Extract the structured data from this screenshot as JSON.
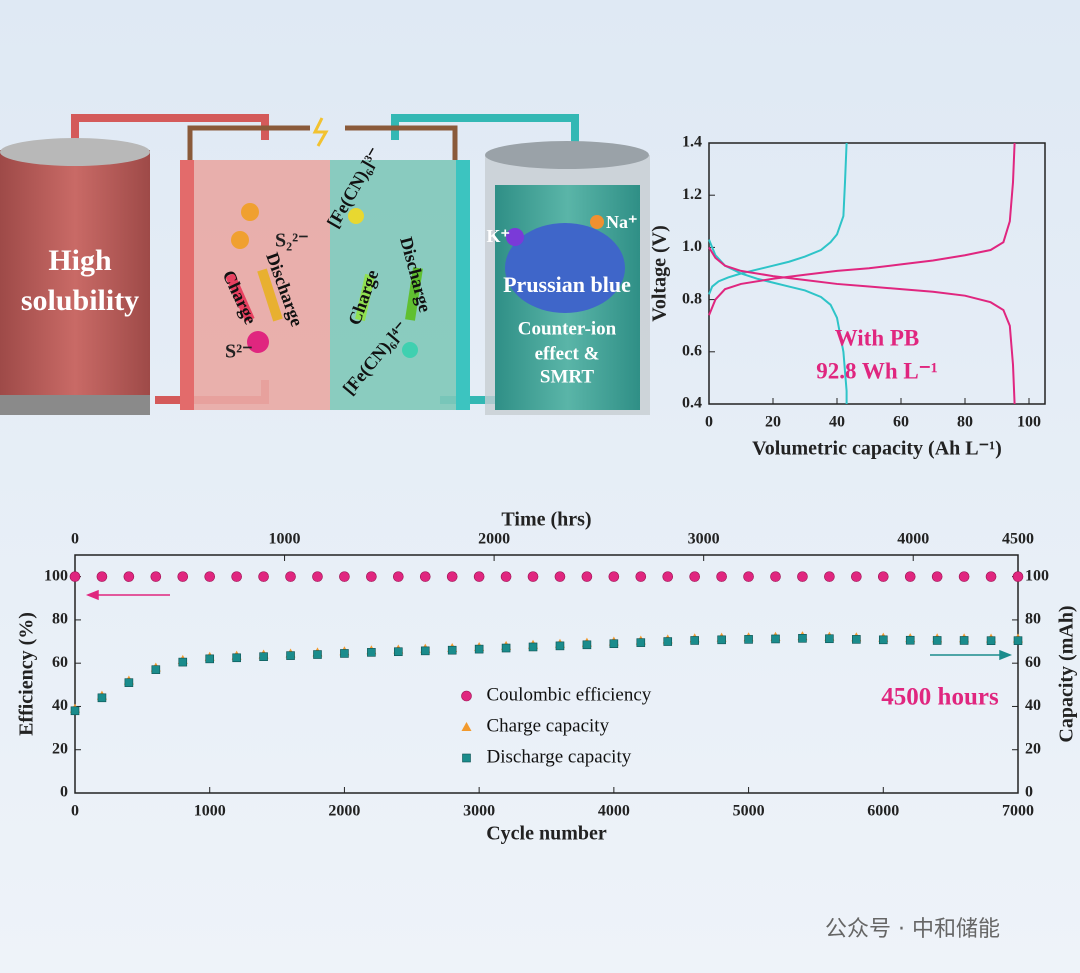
{
  "chart_data": [
    {
      "type": "line",
      "x_label": "Volumetric capacity (Ah L⁻¹)",
      "y_label": "Voltage (V)",
      "annotations": [
        "With PB",
        "92.8 Wh L⁻¹"
      ],
      "xlim": [
        0,
        105
      ],
      "xticks": [
        0,
        20,
        40,
        60,
        80,
        100
      ],
      "ylim": [
        0.4,
        1.4
      ],
      "yticks": [
        0.4,
        0.6,
        0.8,
        {
          "value": 1,
          "label": "1.0"
        },
        1.2,
        1.4
      ],
      "series": [
        {
          "color": "#2ec4c8",
          "x": [
            0,
            1,
            3,
            6,
            10,
            15,
            20,
            25,
            30,
            35,
            38,
            40,
            42,
            42.5,
            43
          ],
          "values": [
            0.82,
            0.85,
            0.87,
            0.885,
            0.9,
            0.915,
            0.93,
            0.945,
            0.965,
            0.99,
            1.02,
            1.05,
            1.12,
            1.25,
            1.4
          ]
        },
        {
          "color": "#2ec4c8",
          "x": [
            0,
            2,
            5,
            10,
            15,
            20,
            25,
            30,
            35,
            38,
            40,
            42,
            43,
            43
          ],
          "values": [
            1.03,
            0.97,
            0.93,
            0.9,
            0.88,
            0.865,
            0.85,
            0.835,
            0.81,
            0.78,
            0.73,
            0.6,
            0.45,
            0.4
          ]
        },
        {
          "color": "#e0267f",
          "x": [
            0,
            2,
            5,
            10,
            20,
            30,
            40,
            50,
            60,
            70,
            80,
            88,
            92,
            94,
            95,
            95.5
          ],
          "values": [
            0.74,
            0.8,
            0.84,
            0.86,
            0.88,
            0.895,
            0.91,
            0.92,
            0.935,
            0.95,
            0.97,
            0.99,
            1.02,
            1.1,
            1.25,
            1.4
          ]
        },
        {
          "color": "#e0267f",
          "x": [
            0,
            2,
            5,
            10,
            20,
            30,
            40,
            50,
            60,
            70,
            80,
            88,
            92,
            94,
            95,
            95.5
          ],
          "values": [
            1.0,
            0.96,
            0.93,
            0.91,
            0.89,
            0.875,
            0.86,
            0.85,
            0.84,
            0.83,
            0.815,
            0.79,
            0.76,
            0.7,
            0.55,
            0.4
          ]
        }
      ]
    },
    {
      "type": "scatter",
      "x_label": "Cycle number",
      "x2_label": "Time (hrs)",
      "y_label": "Efficiency (%)",
      "y2_label": "Capacity (mAh)",
      "annotations": [
        "4500 hours"
      ],
      "legend": "center",
      "xlim": [
        0,
        7000
      ],
      "xticks": [
        0,
        1000,
        2000,
        3000,
        4000,
        5000,
        6000,
        7000
      ],
      "x2lim": [
        0,
        4500
      ],
      "x2ticks": [
        0,
        1000,
        2000,
        3000,
        4000,
        4500
      ],
      "ylim": [
        0,
        110
      ],
      "yticks": [
        0,
        20,
        40,
        60,
        80,
        100
      ],
      "y2lim": [
        0,
        110
      ],
      "y2ticks": [
        0,
        20,
        40,
        60,
        80,
        100
      ],
      "x": [
        0,
        200,
        400,
        600,
        800,
        1000,
        1200,
        1400,
        1600,
        1800,
        2000,
        2200,
        2400,
        2600,
        2800,
        3000,
        3200,
        3400,
        3600,
        3800,
        4000,
        4200,
        4400,
        4600,
        4800,
        5000,
        5200,
        5400,
        5600,
        5800,
        6000,
        6200,
        6400,
        6600,
        6800,
        7000
      ],
      "series": [
        {
          "name": "Coulombic efficiency",
          "color": "#e0267f",
          "marker": "circle",
          "values": [
            100,
            100,
            100,
            100,
            100,
            100,
            100,
            100,
            100,
            100,
            100,
            100,
            100,
            100,
            100,
            100,
            100,
            100,
            100,
            100,
            100,
            100,
            100,
            100,
            100,
            100,
            100,
            100,
            100,
            100,
            100,
            100,
            100,
            100,
            100,
            100
          ]
        },
        {
          "name": "Charge capacity",
          "color": "#f29a2e",
          "marker": "triangle",
          "axis": "y2",
          "values": [
            39,
            45,
            52,
            58,
            61.5,
            63,
            63.5,
            64,
            64.5,
            65,
            65.5,
            66,
            66.3,
            66.7,
            67,
            67.5,
            68,
            68.5,
            69,
            69.5,
            70,
            70.5,
            71,
            71.5,
            71.8,
            72,
            72.2,
            72.5,
            72.3,
            72,
            71.8,
            71.6,
            71.5,
            71.5,
            71.4,
            71.4
          ]
        },
        {
          "name": "Discharge capacity",
          "color": "#1a8c8c",
          "marker": "square",
          "axis": "y2",
          "values": [
            38,
            44,
            51,
            57,
            60.5,
            62,
            62.5,
            63,
            63.5,
            64,
            64.5,
            65,
            65.3,
            65.7,
            66,
            66.5,
            67,
            67.5,
            68,
            68.5,
            69,
            69.5,
            70,
            70.5,
            70.8,
            71,
            71.2,
            71.5,
            71.3,
            71,
            70.8,
            70.6,
            70.5,
            70.5,
            70.4,
            70.4
          ]
        }
      ]
    }
  ],
  "diagram": {
    "tank_label": [
      "High",
      "solubility"
    ],
    "anolyte": [
      "S₂²⁻",
      "S²⁻"
    ],
    "catholyte": [
      "[Fe(CN)₆]³⁻",
      "[Fe(CN)₆]⁴⁻"
    ],
    "arrows": [
      "Charge",
      "Discharge"
    ],
    "ions": [
      "K⁺",
      "Na⁺"
    ],
    "material": "Prussian blue",
    "effect": [
      "Counter-ion",
      "effect &",
      "SMRT"
    ]
  },
  "watermark": "公众号 · 中和储能"
}
